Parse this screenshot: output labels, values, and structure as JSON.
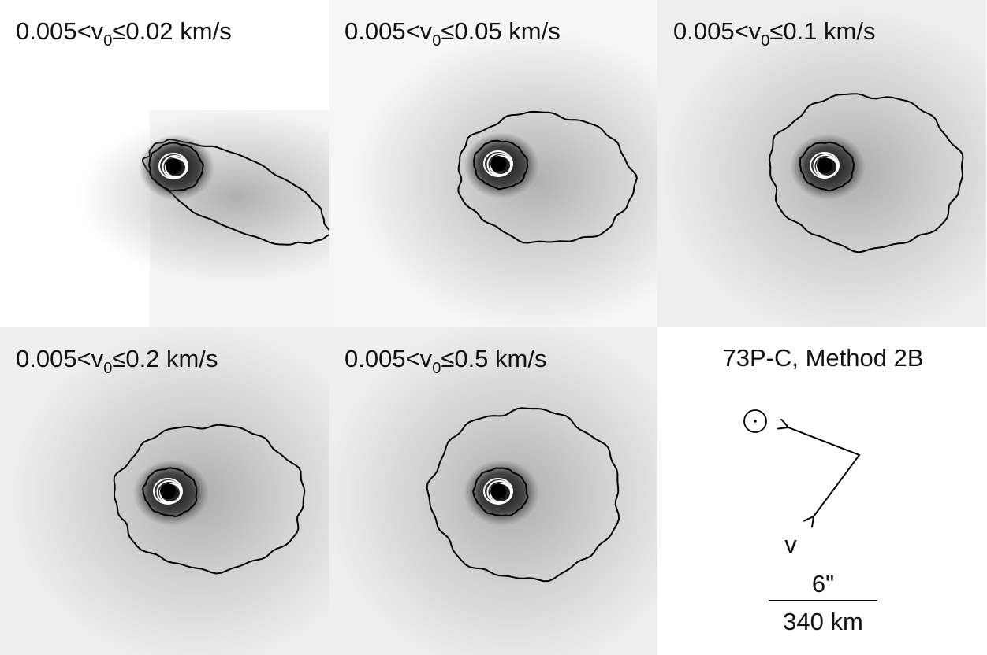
{
  "panels": [
    {
      "label": {
        "prefix": "0.005<v",
        "subscript": "0",
        "suffix": "≤0.02 km/s"
      }
    },
    {
      "label": {
        "prefix": "0.005<v",
        "subscript": "0",
        "suffix": "≤0.05 km/s"
      }
    },
    {
      "label": {
        "prefix": "0.005<v",
        "subscript": "0",
        "suffix": "≤0.1 km/s"
      }
    },
    {
      "label": {
        "prefix": "0.005<v",
        "subscript": "0",
        "suffix": "≤0.2 km/s"
      }
    },
    {
      "label": {
        "prefix": "0.005<v",
        "subscript": "0",
        "suffix": "≤0.5 km/s"
      }
    }
  ],
  "legend_panel": {
    "title": "73P-C, Method 2B",
    "velocity_label": "v",
    "scale_angle": "6\"",
    "scale_distance": "340 km"
  }
}
